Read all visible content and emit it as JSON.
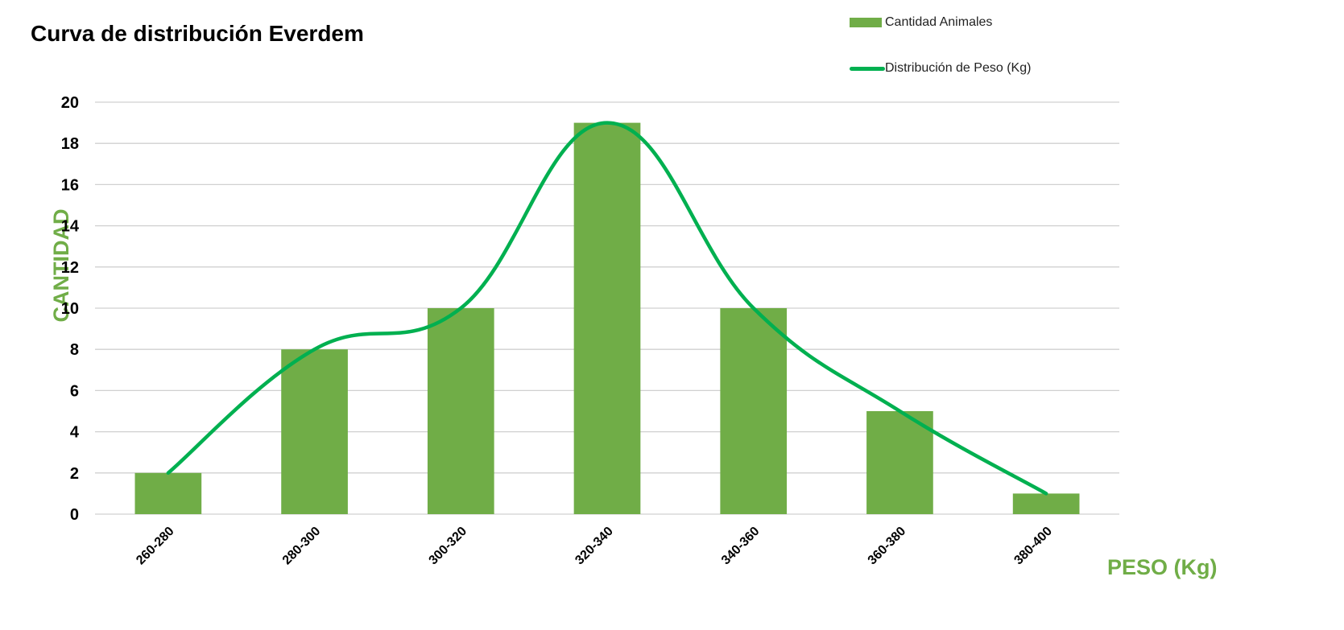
{
  "chart_data": {
    "type": "bar",
    "title": "Curva de distribución Everdem",
    "xlabel": "PESO (Kg)",
    "ylabel": "CANTIDAD",
    "categories": [
      "260-280",
      "280-300",
      "300-320",
      "320-340",
      "340-360",
      "360-380",
      "380-400"
    ],
    "series": [
      {
        "name": "Cantidad Animales",
        "kind": "bar",
        "color": "#70ad47",
        "values": [
          2,
          8,
          10,
          19,
          10,
          5,
          1
        ]
      },
      {
        "name": "Distribución de Peso (Kg)",
        "kind": "line",
        "smooth": true,
        "color": "#00b050",
        "values": [
          2,
          8,
          10,
          19,
          10,
          5,
          1
        ]
      }
    ],
    "ylim": [
      0,
      20
    ],
    "yticks": [
      "0",
      "2",
      "4",
      "6",
      "8",
      "10",
      "12",
      "14",
      "16",
      "18",
      "20"
    ],
    "grid": true,
    "legend_position": "top-right"
  }
}
